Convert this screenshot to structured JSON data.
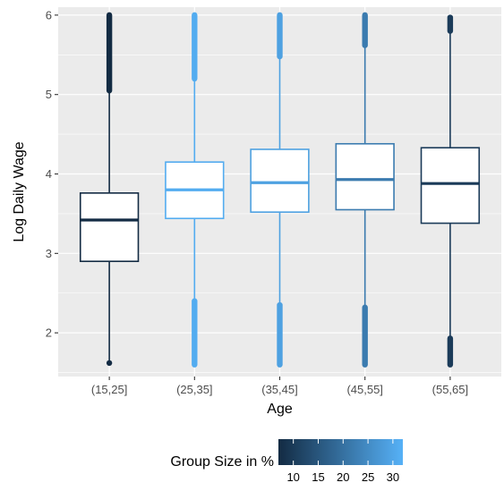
{
  "chart_data": {
    "type": "boxplot",
    "xlabel": "Age",
    "ylabel": "Log Daily Wage",
    "categories": [
      "(15,25]",
      "(25,35]",
      "(35,45]",
      "(45,55]",
      "(55,65]"
    ],
    "ylim": [
      1.45,
      6.1
    ],
    "yticks": [
      2,
      3,
      4,
      5,
      6
    ],
    "grid": true,
    "legend_position": "bottom",
    "boxes": [
      {
        "category": "(15,25]",
        "q1": 2.9,
        "median": 3.42,
        "q3": 3.76,
        "whisker_low": 1.62,
        "whisker_high": 5.05,
        "group_size_pct": 7,
        "outliers_high": [
          5.05,
          6.0
        ],
        "outliers_low": [
          1.62,
          1.62
        ]
      },
      {
        "category": "(25,35]",
        "q1": 3.44,
        "median": 3.8,
        "q3": 4.15,
        "whisker_low": 2.4,
        "whisker_high": 5.2,
        "group_size_pct": 31,
        "outliers_high": [
          5.2,
          6.0
        ],
        "outliers_low": [
          1.6,
          2.4
        ]
      },
      {
        "category": "(35,45]",
        "q1": 3.52,
        "median": 3.89,
        "q3": 4.31,
        "whisker_low": 2.35,
        "whisker_high": 5.48,
        "group_size_pct": 29,
        "outliers_high": [
          5.48,
          6.0
        ],
        "outliers_low": [
          1.6,
          2.35
        ]
      },
      {
        "category": "(45,55]",
        "q1": 3.55,
        "median": 3.93,
        "q3": 4.38,
        "whisker_low": 2.32,
        "whisker_high": 5.62,
        "group_size_pct": 22,
        "outliers_high": [
          5.62,
          6.0
        ],
        "outliers_low": [
          1.6,
          2.32
        ]
      },
      {
        "category": "(55,65]",
        "q1": 3.38,
        "median": 3.88,
        "q3": 4.33,
        "whisker_low": 1.93,
        "whisker_high": 5.8,
        "group_size_pct": 10,
        "outliers_high": [
          5.8,
          5.97
        ],
        "outliers_low": [
          1.6,
          1.93
        ]
      }
    ],
    "legend": {
      "title": "Group Size in %",
      "scale_min": 7,
      "scale_max": 32,
      "ticks": [
        10,
        15,
        20,
        25,
        30
      ],
      "color_low": "#132B43",
      "color_high": "#56B1F7"
    },
    "panel_background": "#EBEBEB",
    "grid_color": "#FFFFFF"
  }
}
